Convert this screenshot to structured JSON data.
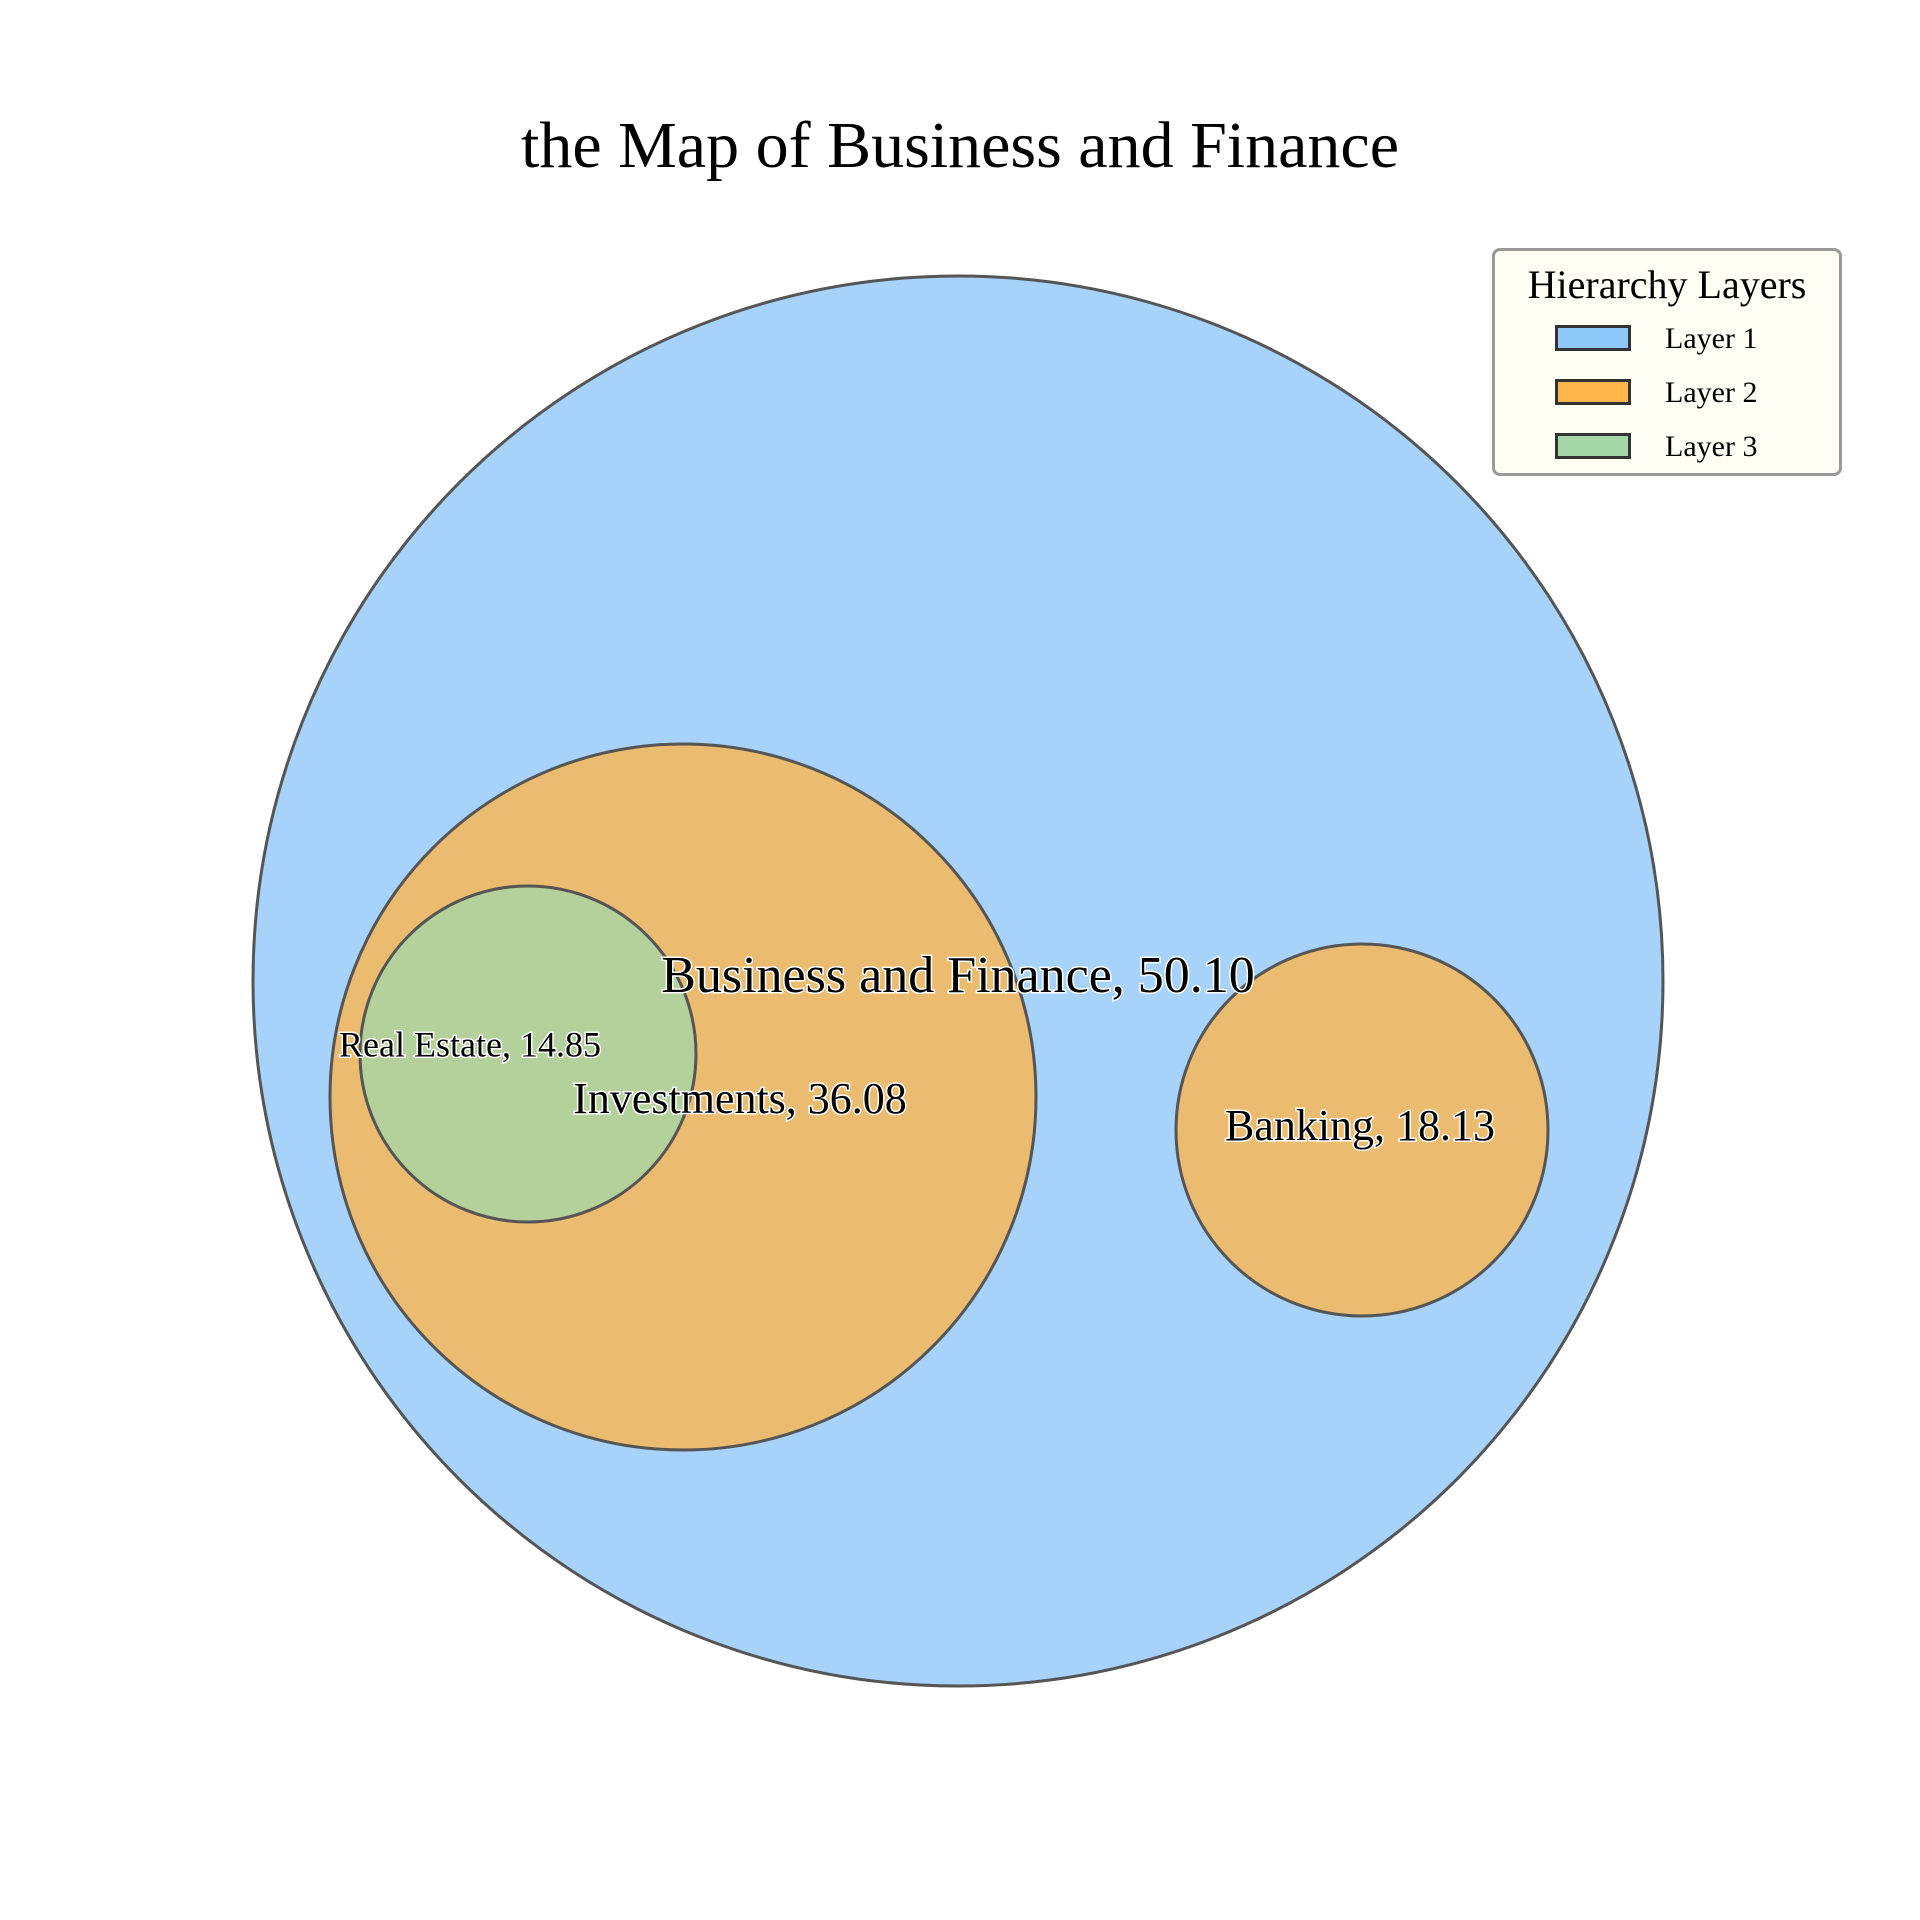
{
  "chart_data": {
    "type": "circle-packing",
    "title": "the Map of Business and Finance",
    "nodes": [
      {
        "name": "Business and Finance",
        "value": 50.1,
        "layer": 1,
        "label": "Business and Finance, 50.10"
      },
      {
        "name": "Investments",
        "value": 36.08,
        "layer": 2,
        "parent": "Business and Finance",
        "label": "Investments, 36.08"
      },
      {
        "name": "Banking",
        "value": 18.13,
        "layer": 2,
        "parent": "Business and Finance",
        "label": "Banking, 18.13"
      },
      {
        "name": "Real Estate",
        "value": 14.85,
        "layer": 3,
        "parent": "Investments",
        "label": "Real Estate, 14.85"
      }
    ],
    "legend": {
      "title": "Hierarchy Layers",
      "placement": "top-right",
      "items": [
        {
          "label": "Layer 1",
          "color": "#8ec8f8"
        },
        {
          "label": "Layer 2",
          "color": "#ffb74d"
        },
        {
          "label": "Layer 3",
          "color": "#a5d6a7"
        }
      ]
    },
    "fill_colors": {
      "1": "#a7d2f9",
      "2": "#ebbb70",
      "3": "#b4d09b"
    },
    "stroke_color": "#555555"
  }
}
